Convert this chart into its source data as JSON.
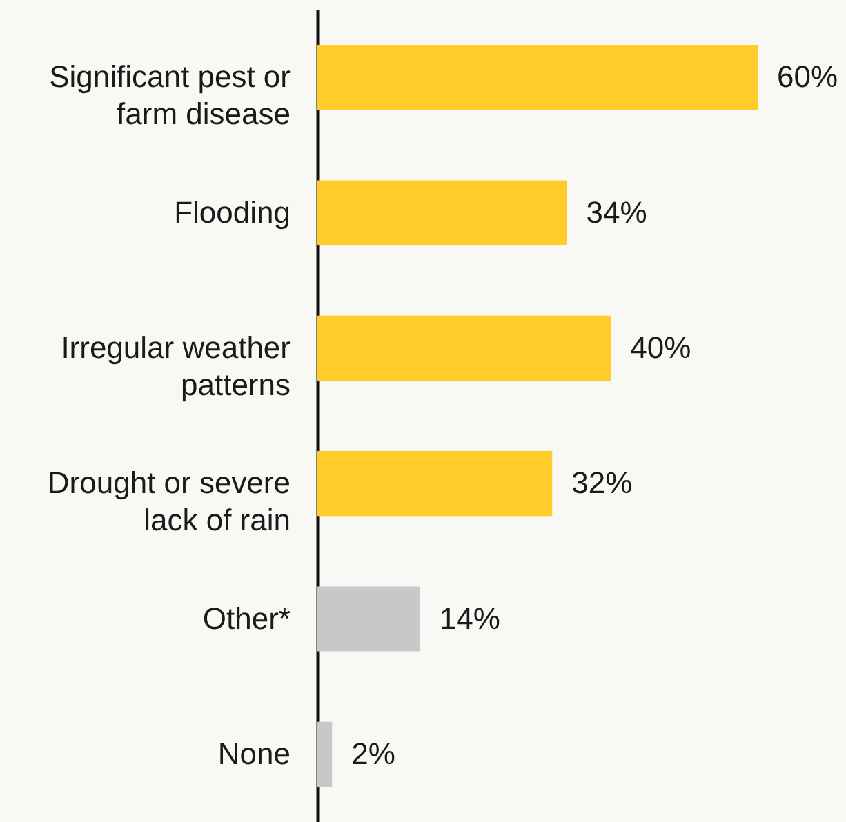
{
  "chart_data": {
    "type": "bar",
    "orientation": "horizontal",
    "categories": [
      "Significant pest or farm disease",
      "Flooding",
      "Irregular weather patterns",
      "Drought or severe lack of rain",
      "Other*",
      "None"
    ],
    "values": [
      60,
      34,
      40,
      32,
      14,
      2
    ],
    "value_labels": [
      "60%",
      "34%",
      "40%",
      "32%",
      "14%",
      "2%"
    ],
    "colors": [
      "#ffcc29",
      "#ffcc29",
      "#ffcc29",
      "#ffcc29",
      "#c7c8ca",
      "#c7c8ca"
    ]
  }
}
